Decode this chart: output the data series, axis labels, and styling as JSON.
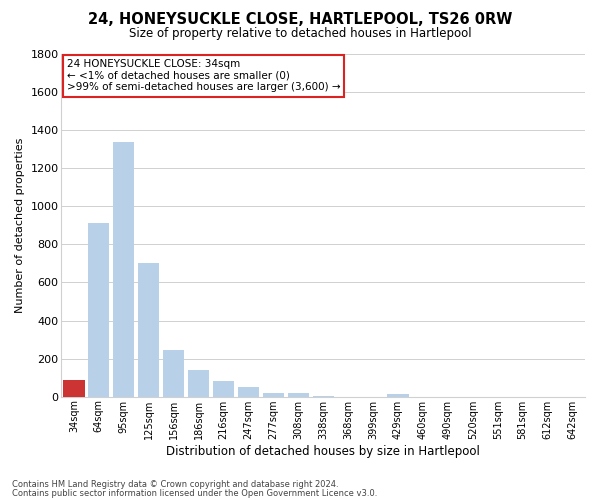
{
  "title": "24, HONEYSUCKLE CLOSE, HARTLEPOOL, TS26 0RW",
  "subtitle": "Size of property relative to detached houses in Hartlepool",
  "xlabel": "Distribution of detached houses by size in Hartlepool",
  "ylabel": "Number of detached properties",
  "bar_labels": [
    "34sqm",
    "64sqm",
    "95sqm",
    "125sqm",
    "156sqm",
    "186sqm",
    "216sqm",
    "247sqm",
    "277sqm",
    "308sqm",
    "338sqm",
    "368sqm",
    "399sqm",
    "429sqm",
    "460sqm",
    "490sqm",
    "520sqm",
    "551sqm",
    "581sqm",
    "612sqm",
    "642sqm"
  ],
  "bar_values": [
    90,
    910,
    1340,
    700,
    245,
    140,
    80,
    50,
    20,
    20,
    5,
    0,
    0,
    15,
    0,
    0,
    0,
    0,
    0,
    0,
    0
  ],
  "highlight_index": 0,
  "bar_color": "#b8d0e8",
  "highlight_color": "#cc3333",
  "ylim": [
    0,
    1800
  ],
  "yticks": [
    0,
    200,
    400,
    600,
    800,
    1000,
    1200,
    1400,
    1600,
    1800
  ],
  "annotation_title": "24 HONEYSUCKLE CLOSE: 34sqm",
  "annotation_line1": "← <1% of detached houses are smaller (0)",
  "annotation_line2": ">99% of semi-detached houses are larger (3,600) →",
  "footer_line1": "Contains HM Land Registry data © Crown copyright and database right 2024.",
  "footer_line2": "Contains public sector information licensed under the Open Government Licence v3.0.",
  "grid_color": "#d0d0d0",
  "background_color": "#ffffff",
  "ann_box_color": "#dd2222"
}
